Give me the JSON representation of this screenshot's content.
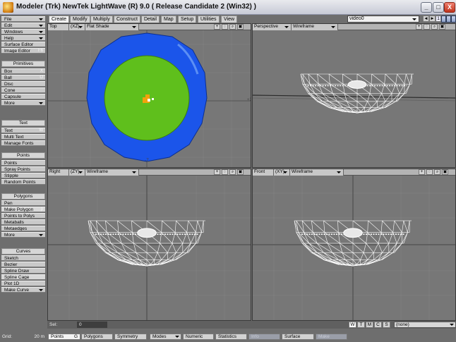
{
  "window": {
    "title": "Modeler (Trk) NewTek LightWave (R)  9.0 ( Release Candidate 2 (Win32) )",
    "buttons": {
      "minimize": "_",
      "maximize": "□",
      "close": "X"
    }
  },
  "tabs": [
    {
      "label": "Create",
      "active": true
    },
    {
      "label": "Modify",
      "active": false
    },
    {
      "label": "Multiply",
      "active": false
    },
    {
      "label": "Construct",
      "active": false
    },
    {
      "label": "Detail",
      "active": false
    },
    {
      "label": "Map",
      "active": false
    },
    {
      "label": "Setup",
      "active": false
    },
    {
      "label": "Utilities",
      "active": false
    },
    {
      "label": "View",
      "active": false
    }
  ],
  "layer_bar": {
    "object": "video0",
    "first_layer": "1"
  },
  "menu": {
    "file": "File",
    "edit": "Edit",
    "windows": "Windows",
    "help": "Help",
    "surface_editor": "Surface Editor",
    "image_editor": "Image Editor",
    "image_editor_key": "F6"
  },
  "toolbar": {
    "primitives": {
      "header": "Primitives",
      "box": "Box",
      "box_key": "X",
      "ball": "Ball",
      "ball_key": "O",
      "disc": "Disc",
      "cone": "Cone",
      "capsule": "Capsule",
      "more": "More"
    },
    "text": {
      "header": "Text",
      "text": "Text",
      "text_key": "W",
      "multi_text": "Multi Text",
      "manage_fonts": "Manage Fonts"
    },
    "points": {
      "header": "Points",
      "points": "Points",
      "spray_points": "Spray Points",
      "stipple": "Stipple",
      "random_points": "Random Points"
    },
    "polygons": {
      "header": "Polygons",
      "pen": "Pen",
      "make_polygon": "Make Polygon",
      "make_polygon_key": "p",
      "points_to_polys": "Points to Polys",
      "metaballs": "Metaballs",
      "metaedges": "Metaedges",
      "more": "More"
    },
    "curves": {
      "header": "Curves",
      "sketch": "Sketch",
      "bezier": "Bezier",
      "spline_draw": "Spline Draw",
      "spline_cage": "Spline Cage",
      "plot_1d": "Plot 1D",
      "make_curve": "Make Curve"
    }
  },
  "viewports": {
    "top": {
      "name": "Top",
      "axis": "(XZ)",
      "mode": "Flat Shade"
    },
    "perspective": {
      "name": "Perspective",
      "mode": "Wireframe"
    },
    "right": {
      "name": "Right",
      "axis": "(ZY)",
      "mode": "Wireframe"
    },
    "front": {
      "name": "Front",
      "axis": "(XY)",
      "mode": "Wireframe"
    },
    "icons": {
      "move": "+",
      "rotate": "◌",
      "zoom": "⌕",
      "maximize": "▣"
    }
  },
  "colors": {
    "outer_ring": "#1b55ea",
    "inner_disc": "#5fbf1c",
    "marker": "#f2a20c",
    "wire": "#ffffff"
  },
  "status": {
    "sel_label": "Sel:",
    "sel_count": "0",
    "select_modes": [
      "W",
      "T",
      "M",
      "C",
      "S"
    ],
    "surface": "(none)"
  },
  "bottom": {
    "grid_label": "Grid:",
    "grid_value": "20 m",
    "points": "Points",
    "points_key": "G",
    "polygons": "Polygons",
    "symmetry": "Symmetry",
    "modes": "Modes",
    "numeric": "Numeric",
    "statistics": "Statistics",
    "info": "Info",
    "surface": "Surface",
    "make": "Make"
  }
}
